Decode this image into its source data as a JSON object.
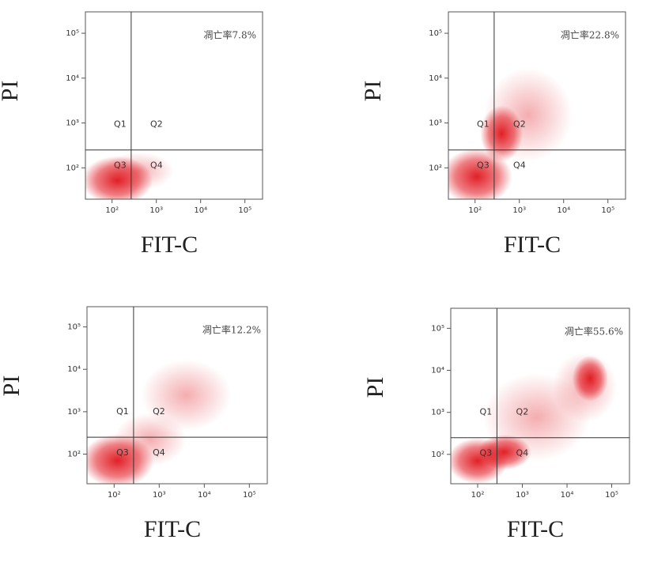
{
  "chart_data": [
    {
      "type": "scatter",
      "x_label": "FIT-C",
      "y_label": "PI",
      "annotation": "凋亡率7.8%",
      "log_x": true,
      "log_y": true,
      "xlim": [
        25,
        250000
      ],
      "ylim": [
        20,
        300000
      ],
      "xticks": [
        {
          "value": 100,
          "label": "10²"
        },
        {
          "value": 1000,
          "label": "10³"
        },
        {
          "value": 10000,
          "label": "10⁴"
        },
        {
          "value": 100000,
          "label": "10⁵"
        }
      ],
      "yticks": [
        {
          "value": 100,
          "label": "10²"
        },
        {
          "value": 1000,
          "label": "10³"
        },
        {
          "value": 10000,
          "label": "10⁴"
        },
        {
          "value": 100000,
          "label": "10⁵"
        }
      ],
      "x_gate": 270,
      "y_gate": 250,
      "quadrants": [
        "Q1",
        "Q2",
        "Q3",
        "Q4"
      ],
      "color": "#e0141c"
    },
    {
      "type": "scatter",
      "x_label": "FIT-C",
      "y_label": "PI",
      "annotation": "凋亡率22.8%",
      "log_x": true,
      "log_y": true,
      "xlim": [
        25,
        250000
      ],
      "ylim": [
        20,
        300000
      ],
      "xticks": [
        {
          "value": 100,
          "label": "10²"
        },
        {
          "value": 1000,
          "label": "10³"
        },
        {
          "value": 10000,
          "label": "10⁴"
        },
        {
          "value": 100000,
          "label": "10⁵"
        }
      ],
      "yticks": [
        {
          "value": 100,
          "label": "10²"
        },
        {
          "value": 1000,
          "label": "10³"
        },
        {
          "value": 10000,
          "label": "10⁴"
        },
        {
          "value": 100000,
          "label": "10⁵"
        }
      ],
      "x_gate": 270,
      "y_gate": 250,
      "quadrants": [
        "Q1",
        "Q2",
        "Q3",
        "Q4"
      ],
      "color": "#e0141c"
    },
    {
      "type": "scatter",
      "x_label": "FIT-C",
      "y_label": "PI",
      "annotation": "凋亡率12.2%",
      "log_x": true,
      "log_y": true,
      "xlim": [
        25,
        250000
      ],
      "ylim": [
        20,
        300000
      ],
      "xticks": [
        {
          "value": 100,
          "label": "10²"
        },
        {
          "value": 1000,
          "label": "10³"
        },
        {
          "value": 10000,
          "label": "10⁴"
        },
        {
          "value": 100000,
          "label": "10⁵"
        }
      ],
      "yticks": [
        {
          "value": 100,
          "label": "10²"
        },
        {
          "value": 1000,
          "label": "10³"
        },
        {
          "value": 10000,
          "label": "10⁴"
        },
        {
          "value": 100000,
          "label": "10⁵"
        }
      ],
      "x_gate": 270,
      "y_gate": 250,
      "quadrants": [
        "Q1",
        "Q2",
        "Q3",
        "Q4"
      ],
      "color": "#e0141c"
    },
    {
      "type": "scatter",
      "x_label": "FIT-C",
      "y_label": "PI",
      "annotation": "凋亡率55.6%",
      "log_x": true,
      "log_y": true,
      "xlim": [
        25,
        250000
      ],
      "ylim": [
        20,
        300000
      ],
      "xticks": [
        {
          "value": 100,
          "label": "10²"
        },
        {
          "value": 1000,
          "label": "10³"
        },
        {
          "value": 10000,
          "label": "10⁴"
        },
        {
          "value": 100000,
          "label": "10⁵"
        }
      ],
      "yticks": [
        {
          "value": 100,
          "label": "10²"
        },
        {
          "value": 1000,
          "label": "10³"
        },
        {
          "value": 10000,
          "label": "10⁴"
        },
        {
          "value": 100000,
          "label": "10⁵"
        }
      ],
      "x_gate": 270,
      "y_gate": 250,
      "quadrants": [
        "Q1",
        "Q2",
        "Q3",
        "Q4"
      ],
      "color": "#e0141c"
    }
  ]
}
